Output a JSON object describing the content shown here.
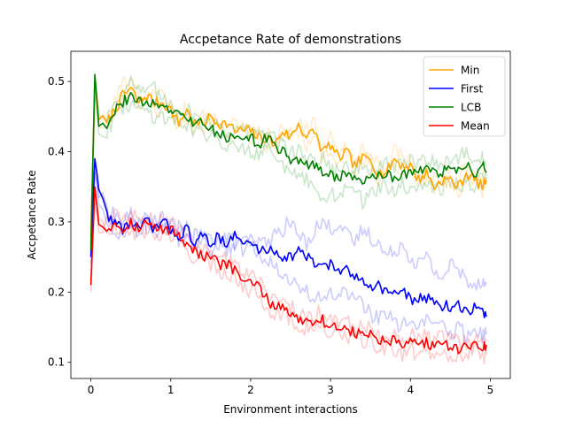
{
  "chart_data": {
    "type": "line",
    "title": "Accpetance Rate of demonstrations",
    "xlabel": "Environment interactions",
    "ylabel": "Accpetance Rate",
    "xlim": [
      -0.25,
      5.25
    ],
    "ylim": [
      0.077,
      0.543
    ],
    "xticks": [
      0,
      1,
      2,
      3,
      4,
      5
    ],
    "xtick_labels": [
      "0",
      "1",
      "2",
      "3",
      "4",
      "5"
    ],
    "yticks": [
      0.1,
      0.2,
      0.3,
      0.4,
      0.5
    ],
    "ytick_labels": [
      "0.1",
      "0.2",
      "0.3",
      "0.4",
      "0.5"
    ],
    "grid": false,
    "legend_position": "top-right",
    "x": [
      0,
      0.05,
      0.1,
      0.2,
      0.3,
      0.4,
      0.5,
      0.6,
      0.7,
      0.8,
      0.9,
      1.0,
      1.1,
      1.2,
      1.3,
      1.4,
      1.5,
      1.6,
      1.7,
      1.8,
      1.9,
      2.0,
      2.1,
      2.2,
      2.3,
      2.4,
      2.5,
      2.6,
      2.7,
      2.8,
      2.9,
      3.0,
      3.1,
      3.2,
      3.3,
      3.4,
      3.5,
      3.6,
      3.7,
      3.8,
      3.9,
      4.0,
      4.1,
      4.2,
      4.3,
      4.4,
      4.5,
      4.6,
      4.7,
      4.8,
      4.9,
      4.95
    ],
    "series": [
      {
        "name": "Min",
        "color": "#ffa500",
        "values": [
          0.28,
          0.5,
          0.45,
          0.44,
          0.46,
          0.48,
          0.49,
          0.47,
          0.48,
          0.47,
          0.47,
          0.46,
          0.44,
          0.46,
          0.44,
          0.44,
          0.45,
          0.44,
          0.44,
          0.43,
          0.43,
          0.43,
          0.42,
          0.42,
          0.41,
          0.43,
          0.42,
          0.44,
          0.42,
          0.43,
          0.4,
          0.41,
          0.39,
          0.4,
          0.38,
          0.39,
          0.39,
          0.37,
          0.37,
          0.39,
          0.38,
          0.38,
          0.36,
          0.37,
          0.35,
          0.36,
          0.36,
          0.35,
          0.37,
          0.36,
          0.35,
          0.36
        ],
        "runs": [
          [
            0.29,
            0.48,
            0.44,
            0.43,
            0.47,
            0.5,
            0.49,
            0.46,
            0.49,
            0.46,
            0.46,
            0.47,
            0.43,
            0.47,
            0.45,
            0.43,
            0.46,
            0.43,
            0.45,
            0.44,
            0.42,
            0.44,
            0.41,
            0.43,
            0.4,
            0.44,
            0.41,
            0.45,
            0.41,
            0.42,
            0.41,
            0.4,
            0.38,
            0.41,
            0.37,
            0.4,
            0.38,
            0.36,
            0.38,
            0.38,
            0.37,
            0.39,
            0.35,
            0.38,
            0.34,
            0.37,
            0.35,
            0.36,
            0.38,
            0.35,
            0.34,
            0.35
          ],
          [
            0.27,
            0.51,
            0.46,
            0.45,
            0.45,
            0.47,
            0.5,
            0.48,
            0.47,
            0.48,
            0.48,
            0.45,
            0.45,
            0.45,
            0.43,
            0.45,
            0.44,
            0.45,
            0.43,
            0.42,
            0.44,
            0.42,
            0.43,
            0.41,
            0.42,
            0.42,
            0.43,
            0.43,
            0.43,
            0.44,
            0.39,
            0.42,
            0.4,
            0.39,
            0.39,
            0.38,
            0.4,
            0.38,
            0.36,
            0.4,
            0.39,
            0.37,
            0.37,
            0.36,
            0.36,
            0.35,
            0.37,
            0.34,
            0.36,
            0.37,
            0.36,
            0.37
          ]
        ]
      },
      {
        "name": "First",
        "color": "#0000ff",
        "values": [
          0.25,
          0.39,
          0.35,
          0.31,
          0.3,
          0.29,
          0.3,
          0.29,
          0.3,
          0.29,
          0.3,
          0.29,
          0.28,
          0.29,
          0.27,
          0.28,
          0.27,
          0.28,
          0.27,
          0.28,
          0.27,
          0.27,
          0.26,
          0.26,
          0.26,
          0.25,
          0.25,
          0.26,
          0.25,
          0.24,
          0.24,
          0.24,
          0.23,
          0.23,
          0.22,
          0.22,
          0.21,
          0.21,
          0.2,
          0.2,
          0.2,
          0.19,
          0.19,
          0.19,
          0.19,
          0.18,
          0.18,
          0.18,
          0.17,
          0.18,
          0.17,
          0.165
        ],
        "runs": [
          [
            0.26,
            0.37,
            0.34,
            0.32,
            0.31,
            0.3,
            0.31,
            0.28,
            0.31,
            0.28,
            0.31,
            0.28,
            0.29,
            0.28,
            0.28,
            0.27,
            0.28,
            0.27,
            0.28,
            0.27,
            0.28,
            0.26,
            0.27,
            0.27,
            0.28,
            0.29,
            0.3,
            0.28,
            0.27,
            0.29,
            0.3,
            0.29,
            0.3,
            0.28,
            0.27,
            0.29,
            0.28,
            0.27,
            0.25,
            0.26,
            0.27,
            0.25,
            0.24,
            0.25,
            0.23,
            0.22,
            0.24,
            0.23,
            0.22,
            0.21,
            0.22,
            0.21
          ],
          [
            0.24,
            0.38,
            0.33,
            0.3,
            0.29,
            0.28,
            0.29,
            0.3,
            0.29,
            0.3,
            0.29,
            0.3,
            0.27,
            0.3,
            0.26,
            0.29,
            0.26,
            0.29,
            0.26,
            0.27,
            0.26,
            0.28,
            0.25,
            0.25,
            0.24,
            0.23,
            0.22,
            0.21,
            0.2,
            0.19,
            0.19,
            0.2,
            0.19,
            0.2,
            0.19,
            0.18,
            0.17,
            0.16,
            0.17,
            0.16,
            0.15,
            0.16,
            0.15,
            0.16,
            0.15,
            0.15,
            0.14,
            0.15,
            0.14,
            0.15,
            0.14,
            0.14
          ]
        ]
      },
      {
        "name": "LCB",
        "color": "#008000",
        "values": [
          0.26,
          0.51,
          0.44,
          0.44,
          0.46,
          0.47,
          0.48,
          0.47,
          0.47,
          0.47,
          0.46,
          0.46,
          0.45,
          0.45,
          0.44,
          0.44,
          0.43,
          0.43,
          0.42,
          0.42,
          0.42,
          0.42,
          0.41,
          0.42,
          0.41,
          0.4,
          0.39,
          0.39,
          0.38,
          0.38,
          0.37,
          0.37,
          0.36,
          0.37,
          0.36,
          0.36,
          0.36,
          0.37,
          0.37,
          0.36,
          0.37,
          0.37,
          0.37,
          0.38,
          0.37,
          0.37,
          0.38,
          0.37,
          0.38,
          0.37,
          0.38,
          0.37
        ],
        "runs": [
          [
            0.27,
            0.5,
            0.45,
            0.45,
            0.47,
            0.49,
            0.5,
            0.49,
            0.48,
            0.49,
            0.47,
            0.47,
            0.46,
            0.46,
            0.45,
            0.45,
            0.44,
            0.44,
            0.43,
            0.43,
            0.43,
            0.43,
            0.42,
            0.43,
            0.42,
            0.41,
            0.4,
            0.4,
            0.39,
            0.39,
            0.39,
            0.38,
            0.37,
            0.38,
            0.37,
            0.38,
            0.37,
            0.38,
            0.38,
            0.38,
            0.38,
            0.39,
            0.38,
            0.39,
            0.39,
            0.38,
            0.39,
            0.39,
            0.4,
            0.39,
            0.39,
            0.38
          ],
          [
            0.25,
            0.49,
            0.43,
            0.43,
            0.45,
            0.46,
            0.47,
            0.46,
            0.46,
            0.45,
            0.45,
            0.45,
            0.44,
            0.44,
            0.43,
            0.43,
            0.42,
            0.42,
            0.41,
            0.41,
            0.41,
            0.4,
            0.4,
            0.41,
            0.4,
            0.38,
            0.37,
            0.36,
            0.36,
            0.34,
            0.33,
            0.34,
            0.34,
            0.35,
            0.34,
            0.33,
            0.34,
            0.35,
            0.35,
            0.34,
            0.35,
            0.34,
            0.35,
            0.36,
            0.35,
            0.35,
            0.36,
            0.35,
            0.36,
            0.35,
            0.36,
            0.36
          ]
        ]
      },
      {
        "name": "Mean",
        "color": "#ff0000",
        "values": [
          0.21,
          0.35,
          0.3,
          0.29,
          0.3,
          0.29,
          0.3,
          0.29,
          0.3,
          0.29,
          0.29,
          0.29,
          0.28,
          0.27,
          0.26,
          0.25,
          0.25,
          0.24,
          0.24,
          0.23,
          0.22,
          0.21,
          0.21,
          0.19,
          0.18,
          0.18,
          0.17,
          0.16,
          0.16,
          0.16,
          0.16,
          0.15,
          0.15,
          0.15,
          0.14,
          0.14,
          0.14,
          0.13,
          0.13,
          0.13,
          0.12,
          0.13,
          0.12,
          0.13,
          0.12,
          0.13,
          0.12,
          0.12,
          0.12,
          0.13,
          0.12,
          0.125
        ],
        "runs": [
          [
            0.2,
            0.33,
            0.29,
            0.3,
            0.31,
            0.3,
            0.31,
            0.3,
            0.31,
            0.3,
            0.3,
            0.3,
            0.29,
            0.28,
            0.27,
            0.26,
            0.26,
            0.25,
            0.25,
            0.24,
            0.23,
            0.22,
            0.22,
            0.2,
            0.19,
            0.19,
            0.18,
            0.17,
            0.17,
            0.17,
            0.17,
            0.16,
            0.16,
            0.16,
            0.15,
            0.15,
            0.15,
            0.14,
            0.14,
            0.14,
            0.13,
            0.14,
            0.13,
            0.14,
            0.13,
            0.14,
            0.13,
            0.13,
            0.13,
            0.14,
            0.13,
            0.13
          ],
          [
            0.22,
            0.34,
            0.31,
            0.28,
            0.29,
            0.28,
            0.29,
            0.28,
            0.29,
            0.28,
            0.28,
            0.28,
            0.27,
            0.26,
            0.25,
            0.24,
            0.24,
            0.23,
            0.23,
            0.22,
            0.21,
            0.2,
            0.2,
            0.18,
            0.17,
            0.17,
            0.16,
            0.15,
            0.15,
            0.15,
            0.15,
            0.14,
            0.14,
            0.14,
            0.13,
            0.13,
            0.13,
            0.12,
            0.12,
            0.12,
            0.11,
            0.12,
            0.11,
            0.12,
            0.11,
            0.12,
            0.11,
            0.11,
            0.11,
            0.12,
            0.11,
            0.11
          ]
        ]
      }
    ]
  }
}
